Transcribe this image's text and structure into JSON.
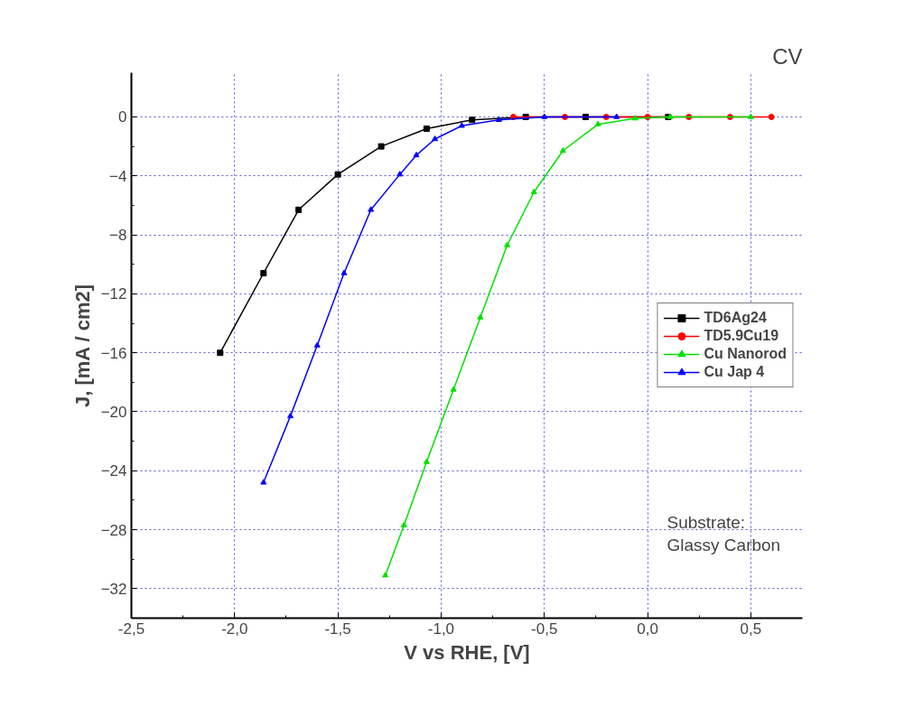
{
  "chart_data": {
    "type": "line",
    "title": "CV",
    "xlabel": "V vs RHE, [V]",
    "ylabel": "J, [mA / cm2]",
    "xlim": [
      -2.5,
      0.75
    ],
    "ylim": [
      -34,
      3
    ],
    "xticks": [
      {
        "value": -2.5,
        "label": "-2,5"
      },
      {
        "value": -2.0,
        "label": "-2,0"
      },
      {
        "value": -1.5,
        "label": "-1,5"
      },
      {
        "value": -1.0,
        "label": "-1,0"
      },
      {
        "value": -0.5,
        "label": "-0,5"
      },
      {
        "value": 0.0,
        "label": "0,0"
      },
      {
        "value": 0.5,
        "label": "0,5"
      }
    ],
    "yticks": [
      0,
      -4,
      -8,
      -12,
      -16,
      -20,
      -24,
      -28,
      -32
    ],
    "grid": true,
    "legend": "right",
    "series": [
      {
        "name": "TD6Ag24",
        "color": "#000000",
        "marker": "square",
        "x": [
          -2.07,
          -1.86,
          -1.69,
          -1.5,
          -1.29,
          -1.07,
          -0.85,
          -0.59,
          -0.3,
          0.1
        ],
        "values": [
          -16.0,
          -10.6,
          -6.3,
          -3.9,
          -2.0,
          -0.8,
          -0.2,
          0,
          0,
          0
        ]
      },
      {
        "name": "TD5.9Cu19",
        "color": "#ff0000",
        "marker": "circle",
        "x": [
          -0.65,
          -0.4,
          -0.2,
          0.0,
          0.2,
          0.4,
          0.6
        ],
        "values": [
          0,
          0,
          0,
          0,
          0,
          0,
          0
        ]
      },
      {
        "name": "Cu Nanorod",
        "color": "#00e000",
        "marker": "triangle",
        "x": [
          -1.27,
          -1.18,
          -1.07,
          -0.94,
          -0.81,
          -0.68,
          -0.55,
          -0.41,
          -0.24,
          -0.06,
          0.11,
          0.5
        ],
        "values": [
          -31.1,
          -27.7,
          -23.4,
          -18.5,
          -13.6,
          -8.7,
          -5.1,
          -2.3,
          -0.5,
          -0.1,
          0,
          0
        ]
      },
      {
        "name": "Cu Jap 4",
        "color": "#0000ff",
        "marker": "triangle",
        "x": [
          -1.86,
          -1.73,
          -1.6,
          -1.47,
          -1.34,
          -1.2,
          -1.12,
          -1.03,
          -0.9,
          -0.72,
          -0.5,
          -0.15
        ],
        "values": [
          -24.8,
          -20.3,
          -15.5,
          -10.6,
          -6.3,
          -3.9,
          -2.6,
          -1.5,
          -0.6,
          -0.2,
          0,
          0
        ]
      }
    ],
    "annotations": [
      "Substrate:\nGlassy Carbon"
    ]
  }
}
